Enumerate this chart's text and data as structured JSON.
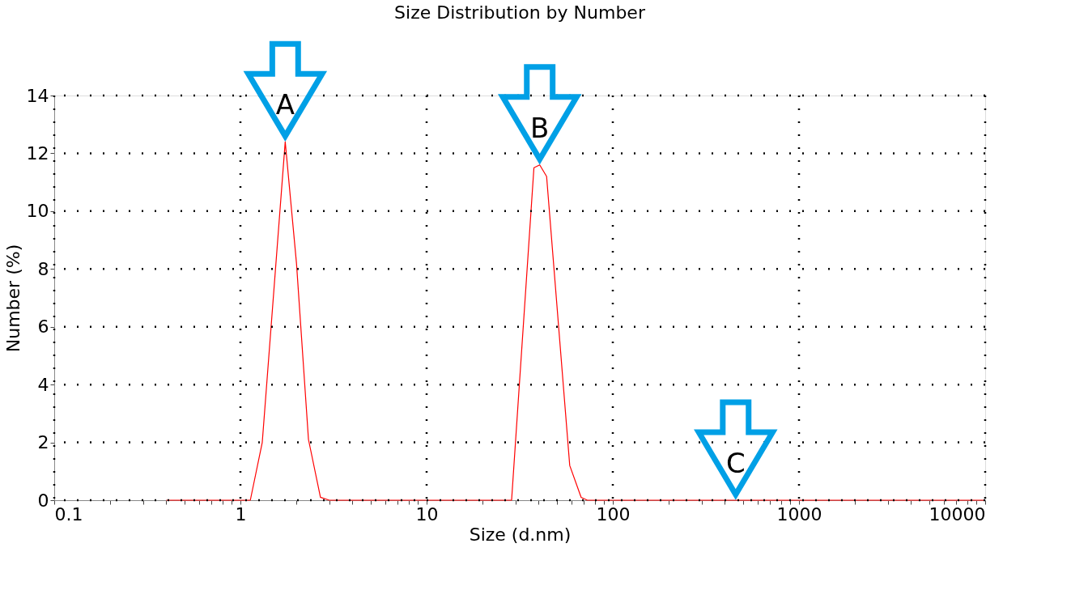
{
  "chart_data": {
    "type": "line",
    "title": "Size Distribution by Number",
    "xlabel": "Size (d.nm)",
    "ylabel": "Number (%)",
    "x": [
      0.4,
      1.13,
      1.31,
      1.74,
      2.0,
      2.32,
      2.69,
      3.0,
      28.6,
      37.7,
      40.5,
      44.1,
      58.7,
      67.6,
      73,
      10000
    ],
    "series": [
      {
        "color": "#ff0000",
        "values": [
          0,
          0,
          2.0,
          12.4,
          8.2,
          2.1,
          0.1,
          0,
          0,
          11.5,
          11.6,
          11.2,
          1.2,
          0.1,
          0,
          0
        ]
      }
    ],
    "log": "x",
    "xlim": [
      0.1,
      10000
    ],
    "ylim": [
      0,
      14
    ],
    "xticks": [
      0.1,
      {
        "value": 0.2,
        "label": null
      },
      {
        "value": 0.3,
        "label": null
      },
      {
        "value": 0.4,
        "label": null
      },
      {
        "value": 0.5,
        "label": null
      },
      {
        "value": 0.6,
        "label": null
      },
      {
        "value": 0.7,
        "label": null
      },
      {
        "value": 0.8,
        "label": null
      },
      {
        "value": 0.9,
        "label": null
      },
      1,
      {
        "value": 2,
        "label": null
      },
      {
        "value": 3,
        "label": null
      },
      {
        "value": 4,
        "label": null
      },
      {
        "value": 5,
        "label": null
      },
      {
        "value": 6,
        "label": null
      },
      {
        "value": 7,
        "label": null
      },
      {
        "value": 8,
        "label": null
      },
      {
        "value": 9,
        "label": null
      },
      10,
      {
        "value": 20,
        "label": null
      },
      {
        "value": 30,
        "label": null
      },
      {
        "value": 40,
        "label": null
      },
      {
        "value": 50,
        "label": null
      },
      {
        "value": 60,
        "label": null
      },
      {
        "value": 70,
        "label": null
      },
      {
        "value": 80,
        "label": null
      },
      {
        "value": 90,
        "label": null
      },
      100,
      {
        "value": 200,
        "label": null
      },
      {
        "value": 300,
        "label": null
      },
      {
        "value": 400,
        "label": null
      },
      {
        "value": 500,
        "label": null
      },
      {
        "value": 600,
        "label": null
      },
      {
        "value": 700,
        "label": null
      },
      {
        "value": 800,
        "label": null
      },
      {
        "value": 900,
        "label": null
      },
      1000,
      {
        "value": 2000,
        "label": null
      },
      {
        "value": 3000,
        "label": null
      },
      {
        "value": 4000,
        "label": null
      },
      {
        "value": 5000,
        "label": null
      },
      {
        "value": 6000,
        "label": null
      },
      {
        "value": 7000,
        "label": null
      },
      {
        "value": 8000,
        "label": null
      },
      {
        "value": 9000,
        "label": null
      },
      10000
    ],
    "yticks": [
      0,
      2,
      4,
      6,
      8,
      10,
      12,
      14
    ],
    "grid": true,
    "marker": "none",
    "line_style": "solid",
    "annotations": [
      {
        "text": "A",
        "x": 1.74,
        "y": 12.4
      },
      {
        "text": "B",
        "x": 40.5,
        "y": 11.6
      },
      {
        "text": "C",
        "x": 457,
        "y": 0
      }
    ]
  }
}
